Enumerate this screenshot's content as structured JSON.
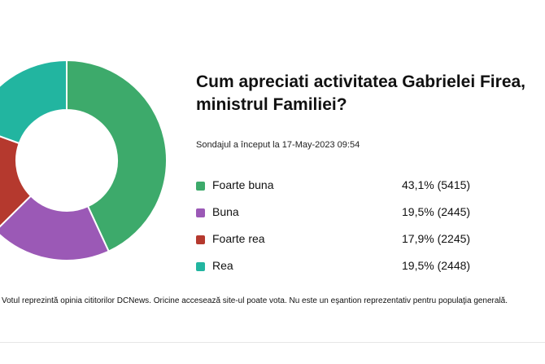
{
  "poll": {
    "title": "Cum apreciati activitatea Gabrielei Firea, ministrul Familiei?",
    "started": "Sondajul a început la 17-May-2023 09:54",
    "footnote": "Votul reprezintă opinia cititorilor DCNews. Oricine accesează site-ul poate vota. Nu este un eşantion reprezentativ pentru populaţia generală."
  },
  "chart_data": {
    "type": "pie",
    "title": "Cum apreciati activitatea Gabrielei Firea, ministrul Familiei?",
    "categories": [
      "Foarte buna",
      "Buna",
      "Foarte rea",
      "Rea"
    ],
    "values": [
      43.1,
      19.5,
      17.9,
      19.5
    ],
    "votes": [
      5415,
      2445,
      2245,
      2448
    ],
    "value_labels": [
      "43,1% (5415)",
      "19,5% (2445)",
      "17,9% (2245)",
      "19,5% (2448)"
    ],
    "colors": [
      "#3daa6b",
      "#9b59b6",
      "#b5392e",
      "#22b5a0"
    ],
    "donut": true,
    "legend": "right"
  }
}
